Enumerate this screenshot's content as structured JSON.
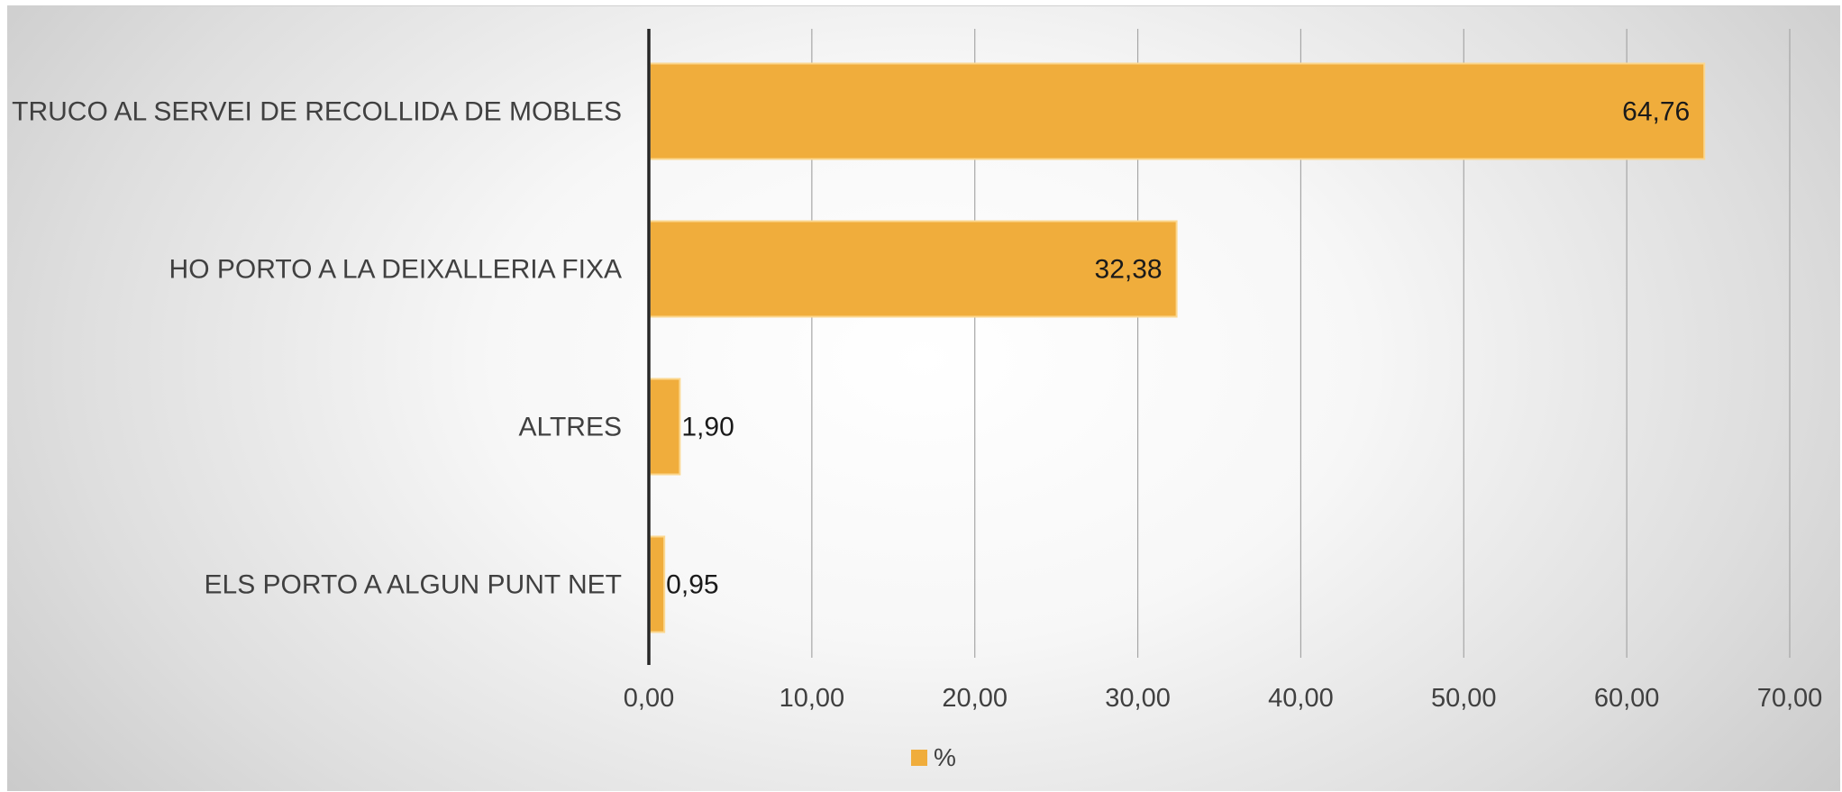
{
  "chart_data": {
    "type": "bar",
    "orientation": "horizontal",
    "categories": [
      "TRUCO AL SERVEI DE RECOLLIDA DE MOBLES",
      "HO PORTO A LA DEIXALLERIA FIXA",
      "ALTRES",
      "ELS PORTO A ALGUN PUNT NET"
    ],
    "series": [
      {
        "name": "%",
        "values": [
          64.76,
          32.38,
          1.9,
          0.95
        ],
        "color": "#f0ad3c"
      }
    ],
    "data_labels": [
      "64,76",
      "32,38",
      "1,90",
      "0,95"
    ],
    "xlim": [
      0,
      70
    ],
    "x_ticks": [
      0,
      10,
      20,
      30,
      40,
      50,
      60,
      70
    ],
    "x_tick_labels": [
      "0,00",
      "10,00",
      "20,00",
      "30,00",
      "40,00",
      "50,00",
      "60,00",
      "70,00"
    ],
    "grid": "vertical",
    "legend": {
      "position": "bottom",
      "label": "%",
      "color": "#f0ad3c"
    },
    "colors": {
      "bar": "#f0ad3c",
      "bar_edge": "#fbd78f",
      "grid": "#a6a6a6",
      "axis": "#262626"
    }
  }
}
